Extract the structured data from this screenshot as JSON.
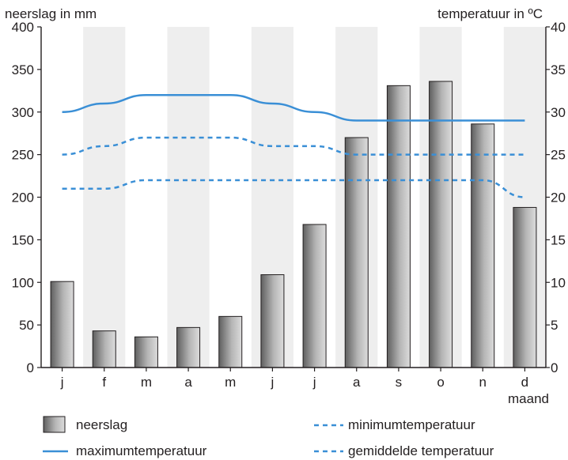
{
  "chart_data": {
    "type": "bar",
    "categories": [
      "j",
      "f",
      "m",
      "a",
      "m",
      "j",
      "j",
      "a",
      "s",
      "o",
      "n",
      "d"
    ],
    "xlabel": "maand",
    "ylabel_left": "neerslag in mm",
    "ylabel_right": "temperatuur in ºC",
    "ylim_left": [
      0,
      400
    ],
    "ylim_right": [
      0,
      40
    ],
    "yticks_left": [
      "0",
      "50",
      "100",
      "150",
      "200",
      "250",
      "300",
      "350",
      "400"
    ],
    "yticks_right": [
      "0",
      "5",
      "10",
      "15",
      "20",
      "25",
      "30",
      "35",
      "40"
    ],
    "grid": false,
    "alternating_column_shading": true,
    "series": [
      {
        "name": "neerslag",
        "type": "bar",
        "axis": "left",
        "values": [
          101,
          43,
          36,
          47,
          60,
          109,
          168,
          270,
          331,
          336,
          286,
          188
        ]
      },
      {
        "name": "maximumtemperatuur",
        "type": "line",
        "axis": "right",
        "style": "solid",
        "values": [
          30,
          31,
          32,
          32,
          32,
          31,
          30,
          29,
          29,
          29,
          29,
          29
        ]
      },
      {
        "name": "minimumtemperatuur",
        "type": "line",
        "axis": "right",
        "style": "dashed",
        "values": [
          21,
          21,
          22,
          22,
          22,
          22,
          22,
          22,
          22,
          22,
          22,
          20
        ]
      },
      {
        "name": "gemiddelde temperatuur",
        "type": "line",
        "axis": "right",
        "style": "dashed",
        "values": [
          25,
          26,
          27,
          27,
          27,
          26,
          26,
          25,
          25,
          25,
          25,
          25
        ]
      }
    ],
    "legend": {
      "placement": "bottom",
      "items": [
        "neerslag",
        "minimumtemperatuur",
        "maximumtemperatuur",
        "gemiddelde temperatuur"
      ]
    },
    "colors": {
      "line": "#3a8fd6",
      "bar_dark": "#6b6b6b",
      "bar_light": "#d4d4d4",
      "bar_stroke": "#231f20",
      "shade": "#eeeeee",
      "axis": "#231f20"
    }
  }
}
